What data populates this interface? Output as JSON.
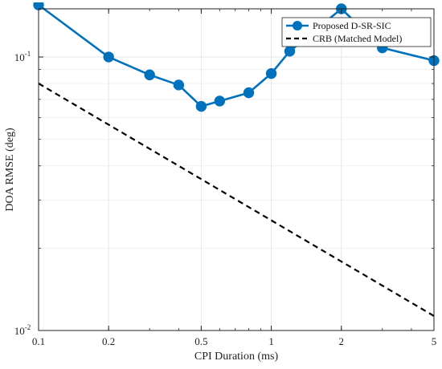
{
  "chart_data": {
    "type": "line",
    "xlabel": "CPI Duration (ms)",
    "ylabel": "DOA RMSE (deg)",
    "xscale": "log",
    "yscale": "log",
    "xlim": [
      0.1,
      5
    ],
    "ylim": [
      0.01,
      0.15
    ],
    "grid": true,
    "legend_position": "top-right",
    "x_ticks": [
      {
        "value": 0.1,
        "label": "0.1"
      },
      {
        "value": 0.2,
        "label": "0.2"
      },
      {
        "value": 0.5,
        "label": "0.5"
      },
      {
        "value": 1,
        "label": "1"
      },
      {
        "value": 2,
        "label": "2"
      },
      {
        "value": 5,
        "label": "5"
      }
    ],
    "y_ticks": [
      {
        "value": 0.01,
        "base": "10",
        "exp": "-2"
      },
      {
        "value": 0.1,
        "base": "10",
        "exp": "-1"
      }
    ],
    "series": [
      {
        "name": "Proposed D-SR-SIC",
        "color": "#0072BD",
        "style": "solid",
        "marker": "circle",
        "x": [
          0.1,
          0.2,
          0.3,
          0.4,
          0.5,
          0.6,
          0.8,
          1.0,
          1.2,
          2.0,
          3.0,
          5.0
        ],
        "y": [
          0.155,
          0.1,
          0.086,
          0.079,
          0.066,
          0.069,
          0.074,
          0.087,
          0.105,
          0.15,
          0.108,
          0.097
        ]
      },
      {
        "name": "CRB (Matched Model)",
        "color": "#000000",
        "style": "dashed",
        "marker": "none",
        "x": [
          0.1,
          5.0
        ],
        "y": [
          0.08,
          0.0113
        ]
      }
    ]
  }
}
